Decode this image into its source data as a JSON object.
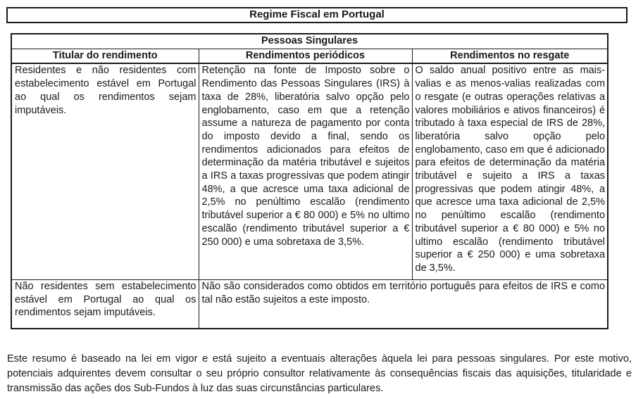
{
  "title": "Regime Fiscal em Portugal",
  "table": {
    "group_header": "Pessoas Singulares",
    "columns": [
      "Titular do rendimento",
      "Rendimentos periódicos",
      "Rendimentos no resgate"
    ],
    "rows": [
      {
        "titular": "Residentes e não residentes com estabelecimento estável em Portugal ao qual os rendimentos sejam imputáveis.",
        "periodicos": "Retenção na fonte de Imposto sobre o Rendimento das Pessoas Singulares (IRS) à taxa de 28%, liberatória salvo opção pelo englobamento, caso em que a retenção assume a natureza de pagamento por conta do imposto devido a final, sendo os rendimentos adicionados para efeitos de determinação da matéria tributável e sujeitos a IRS a taxas progressivas que podem atingir 48%, a que acresce uma taxa adicional de 2,5% no penúltimo escalão (rendimento tributável superior a € 80 000) e 5% no ultimo escalão (rendimento tributável superior a € 250 000) e uma sobretaxa de 3,5%.",
        "resgate": "O saldo anual positivo entre as mais-valias e as menos-valias realizadas com o resgate (e outras operações relativas a valores mobiliários e ativos financeiros) é tributado à taxa especial de IRS de 28%, liberatória salvo opção pelo englobamento, caso em que é adicionado para efeitos de determinação da matéria tributável e sujeito a IRS a taxas progressivas que podem atingir 48%, a que acresce uma taxa adicional de 2,5% no penúltimo escalão (rendimento tributável superior a € 80 000) e 5% no ultimo escalão (rendimento tributável superior a € 250 000) e uma sobretaxa de 3,5%."
      },
      {
        "titular": "Não residentes sem estabelecimento estável em Portugal ao qual os rendimentos sejam imputáveis.",
        "merged": "Não são considerados como obtidos em território português para efeitos de IRS e como tal não estão sujeitos a este imposto."
      }
    ]
  },
  "footer": {
    "text": "Este resumo é baseado na lei em vigor e está sujeito a eventuais alterações àquela lei para pessoas singulares. Por este motivo, potenciais adquirentes devem consultar o seu próprio consultor relativamente às consequências fiscais das aquisições, titularidade e transmissão das ações dos Sub-Fundos à luz das suas circunstâncias particulares."
  }
}
